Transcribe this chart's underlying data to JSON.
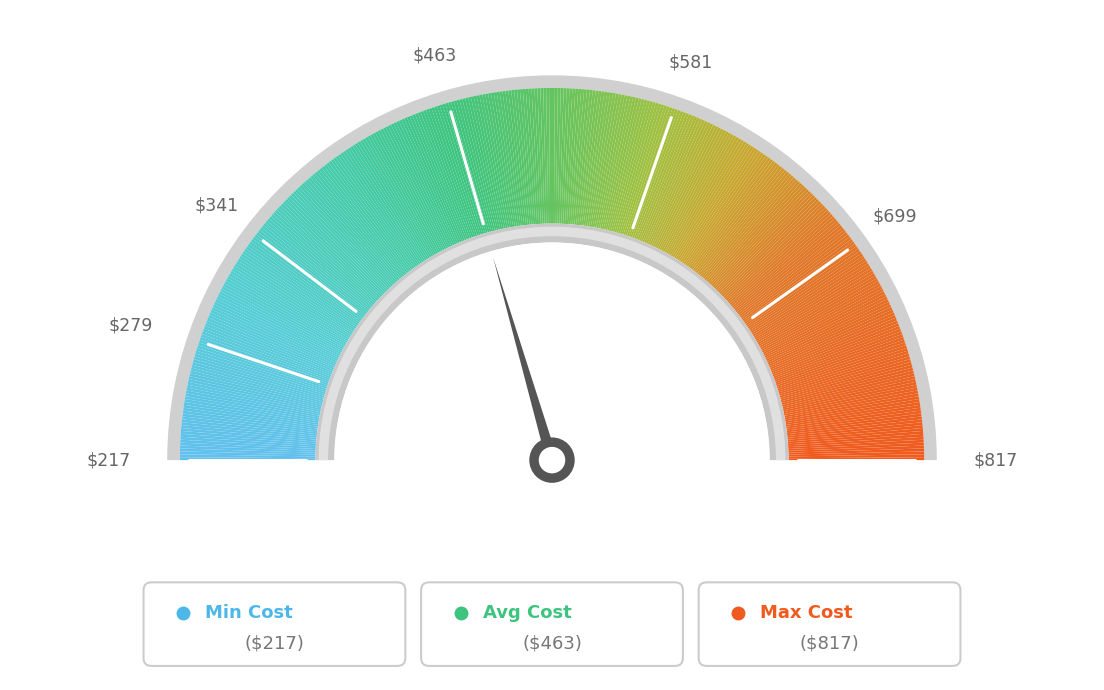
{
  "min_val": 217,
  "max_val": 817,
  "avg_val": 463,
  "tick_labels": [
    "$217",
    "$279",
    "$341",
    "$463",
    "$581",
    "$699",
    "$817"
  ],
  "tick_values": [
    217,
    279,
    341,
    463,
    581,
    699,
    817
  ],
  "legend_items": [
    {
      "label": "Min Cost",
      "value": "($217)",
      "color": "#4db8e8"
    },
    {
      "label": "Avg Cost",
      "value": "($463)",
      "color": "#3dc47e"
    },
    {
      "label": "Max Cost",
      "value": "($817)",
      "color": "#f05a1e"
    }
  ],
  "color_stops": [
    [
      0.0,
      "#62c0ee"
    ],
    [
      0.15,
      "#55cdd4"
    ],
    [
      0.3,
      "#45cba8"
    ],
    [
      0.41,
      "#3dc47e"
    ],
    [
      0.52,
      "#6dc45a"
    ],
    [
      0.6,
      "#a0c040"
    ],
    [
      0.68,
      "#c8a830"
    ],
    [
      0.78,
      "#e07828"
    ],
    [
      1.0,
      "#f05a1e"
    ]
  ],
  "background_color": "#ffffff",
  "needle_color": "#555555",
  "outer_ring_color": "#d0d0d0",
  "inner_ring_color": "#d8d8d8",
  "label_color": "#666666"
}
